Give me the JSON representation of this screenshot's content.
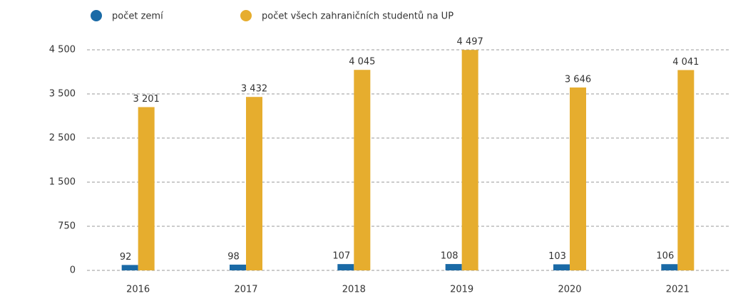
{
  "chart_data": {
    "type": "bar",
    "categories": [
      "2016",
      "2017",
      "2018",
      "2019",
      "2020",
      "2021"
    ],
    "series": [
      {
        "name": "počet zemí",
        "color": "#1a6aa6",
        "values": [
          92,
          98,
          107,
          108,
          103,
          106
        ]
      },
      {
        "name": "počet všech zahraničních studentů na UP",
        "color": "#e6ad2e",
        "values": [
          3201,
          3432,
          4045,
          4497,
          3646,
          4041
        ],
        "value_labels": [
          "3 201",
          "3 432",
          "4 045",
          "4 497",
          "3 646",
          "4 041"
        ]
      }
    ],
    "ylim": [
      0,
      4500
    ],
    "yticks": [
      0,
      750,
      {
        "value": 1500,
        "label": "1 500"
      },
      {
        "value": 2500,
        "label": "2 500"
      },
      {
        "value": 3500,
        "label": "3 500"
      },
      {
        "value": 4500,
        "label": "4 500"
      }
    ],
    "grid": true,
    "legend": "top"
  }
}
